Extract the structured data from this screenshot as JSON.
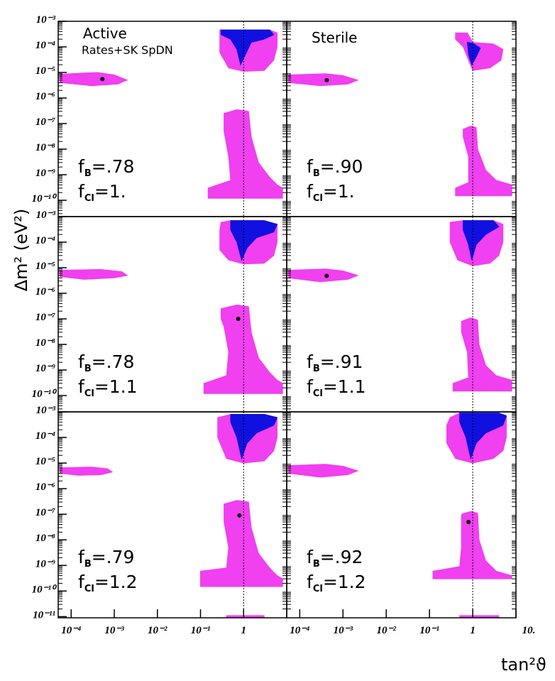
{
  "axis_labels": {
    "y": "Δm² (eV²)",
    "x": "tan²ϑ"
  },
  "chart_data": [
    {
      "type": "region",
      "title": "Active",
      "subtitle": "Rates+SK SpDN",
      "annotations": [
        {
          "f": "f",
          "sub": "B",
          "text": "=.78"
        },
        {
          "f": "f",
          "sub": "Cl",
          "text": "=1."
        }
      ],
      "xlim": [
        5e-05,
        10
      ],
      "ylim": [
        2.3e-11,
        0.001
      ],
      "log_x": true,
      "log_y": true,
      "ref_x": 1,
      "yticks": [
        {
          "value": 0.001,
          "label": "10⁻³"
        },
        {
          "value": 0.0001,
          "label": "10⁻⁴"
        },
        {
          "value": 1e-05,
          "label": "10⁻⁵"
        },
        {
          "value": 1e-06,
          "label": "10⁻⁶"
        },
        {
          "value": 1e-07,
          "label": "10⁻⁷"
        },
        {
          "value": 1e-08,
          "label": "10⁻⁸"
        },
        {
          "value": 1e-09,
          "label": "10⁻⁹"
        },
        {
          "value": 1e-10,
          "label": "10⁻¹⁰"
        }
      ],
      "regions": [
        {
          "color": "#f040f0",
          "x": [
            0.28,
            0.5,
            4,
            6,
            6,
            5,
            3,
            1,
            0.45,
            0.28
          ],
          "y": [
            0.00046,
            0.00046,
            0.00046,
            0.00035,
            0.0001,
            3e-05,
            1.2e-05,
            1.1e-05,
            1.5e-05,
            6e-05
          ]
        },
        {
          "color": "#f040f0",
          "x": [
            5.5e-05,
            0.0004,
            0.001,
            0.002,
            0.0012,
            0.0003,
            5.5e-05
          ],
          "y": [
            8.5e-06,
            1e-05,
            8e-06,
            5e-06,
            3.5e-06,
            3e-06,
            4e-06
          ]
        },
        {
          "color": "#f040f0",
          "x": [
            0.35,
            0.7,
            1.3,
            1.5,
            2.2,
            4,
            6,
            8,
            8,
            0.15,
            0.15,
            0.5,
            0.45,
            0.35
          ],
          "y": [
            2.5e-07,
            3.5e-07,
            3e-07,
            3e-08,
            3e-09,
            8e-10,
            4e-10,
            3e-10,
            1.2e-10,
            1.2e-10,
            3e-10,
            6e-10,
            5e-09,
            5e-08
          ]
        },
        {
          "color": "#1010e0",
          "x": [
            0.3,
            4,
            5,
            3,
            1.5,
            1.1,
            0.85,
            0.7,
            0.5,
            0.3
          ],
          "y": [
            0.00046,
            0.00046,
            0.0003,
            0.0002,
            0.00015,
            5e-05,
            2e-05,
            8e-05,
            0.0002,
            0.0003
          ]
        }
      ],
      "best_fit": {
        "x": 0.00053,
        "y": 5.5e-06
      }
    },
    {
      "type": "region",
      "title": "Sterile",
      "annotations": [
        {
          "f": "f",
          "sub": "B",
          "text": "=.90"
        },
        {
          "f": "f",
          "sub": "Cl",
          "text": "=1."
        }
      ],
      "xlim": [
        5e-05,
        10
      ],
      "ylim": [
        2.3e-11,
        0.001
      ],
      "log_x": true,
      "log_y": true,
      "ref_x": 1,
      "regions": [
        {
          "color": "#f040f0",
          "x": [
            0.4,
            0.75,
            1,
            3,
            5,
            4.5,
            2.5,
            1,
            0.8,
            0.6,
            0.4
          ],
          "y": [
            0.00035,
            0.00035,
            0.00015,
            0.00013,
            8e-05,
            3e-05,
            1.5e-05,
            1.2e-05,
            3e-05,
            0.0001,
            0.0002
          ]
        },
        {
          "color": "#f040f0",
          "x": [
            5.5e-05,
            0.0004,
            0.001,
            0.0022,
            0.0013,
            0.0003,
            5.5e-05
          ],
          "y": [
            8e-06,
            9e-06,
            7.5e-06,
            5e-06,
            3.5e-06,
            3e-06,
            4e-06
          ]
        },
        {
          "color": "#f040f0",
          "x": [
            0.6,
            0.9,
            1.2,
            1.3,
            2,
            3.5,
            8,
            8,
            0.4,
            0.4,
            0.8,
            0.8,
            0.6
          ],
          "y": [
            6e-08,
            8e-08,
            7e-08,
            1e-08,
            1.5e-09,
            6e-10,
            4e-10,
            1.5e-10,
            1.5e-10,
            3e-10,
            5e-10,
            5e-09,
            3e-08
          ]
        },
        {
          "color": "#1010e0",
          "x": [
            0.75,
            1,
            1.5,
            1.2,
            0.95,
            0.8
          ],
          "y": [
            0.00015,
            0.00014,
            9e-05,
            4e-05,
            2e-05,
            5e-05
          ]
        }
      ],
      "best_fit": {
        "x": 0.00042,
        "y": 5e-06
      }
    },
    {
      "type": "region",
      "annotations": [
        {
          "f": "f",
          "sub": "B",
          "text": "=.78"
        },
        {
          "f": "f",
          "sub": "Cl",
          "text": "=1.1"
        }
      ],
      "xlim": [
        5e-05,
        10
      ],
      "ylim": [
        2.3e-11,
        0.001
      ],
      "log_x": true,
      "log_y": true,
      "ref_x": 1,
      "yticks": [
        {
          "value": 0.001,
          "label": "10⁻³"
        },
        {
          "value": 0.0001,
          "label": "10⁻⁴"
        },
        {
          "value": 1e-05,
          "label": "10⁻⁵"
        },
        {
          "value": 1e-06,
          "label": "10⁻⁶"
        },
        {
          "value": 1e-07,
          "label": "10⁻⁷"
        },
        {
          "value": 1e-08,
          "label": "10⁻⁸"
        },
        {
          "value": 1e-09,
          "label": "10⁻⁹"
        },
        {
          "value": 1e-10,
          "label": "10⁻¹⁰"
        }
      ],
      "regions": [
        {
          "color": "#f040f0",
          "x": [
            0.3,
            0.5,
            3,
            6,
            6,
            5,
            3,
            1,
            0.45,
            0.28,
            0.28
          ],
          "y": [
            0.0006,
            0.0007,
            0.0007,
            0.0005,
            0.0001,
            3e-05,
            1.5e-05,
            1.4e-05,
            2e-05,
            5e-05,
            0.0003
          ]
        },
        {
          "color": "#f040f0",
          "x": [
            5.5e-05,
            0.0005,
            0.0015,
            0.002,
            0.001,
            0.0002,
            5.5e-05
          ],
          "y": [
            8e-06,
            8.5e-06,
            7e-06,
            5e-06,
            4e-06,
            3.5e-06,
            4.5e-06
          ]
        },
        {
          "color": "#f040f0",
          "x": [
            0.3,
            0.7,
            1.3,
            1.5,
            2.2,
            4,
            6,
            8,
            8,
            0.12,
            0.12,
            0.4,
            0.45,
            0.35,
            0.3
          ],
          "y": [
            2.5e-07,
            3.5e-07,
            3e-07,
            3e-08,
            3e-09,
            8e-10,
            4e-10,
            3e-10,
            1.2e-10,
            1.2e-10,
            3e-10,
            6e-10,
            5e-09,
            5e-08,
            1e-07
          ]
        },
        {
          "color": "#1010e0",
          "x": [
            0.5,
            3,
            6,
            5,
            2,
            1.2,
            0.9,
            0.7,
            0.5
          ],
          "y": [
            0.0007,
            0.0007,
            0.0005,
            0.00025,
            0.00015,
            6e-05,
            2e-05,
            0.0001,
            0.0003
          ]
        }
      ],
      "best_fit": {
        "x": 0.75,
        "y": 1e-07
      }
    },
    {
      "type": "region",
      "annotations": [
        {
          "f": "f",
          "sub": "B",
          "text": "=.91"
        },
        {
          "f": "f",
          "sub": "Cl",
          "text": "=1.1"
        }
      ],
      "xlim": [
        5e-05,
        10
      ],
      "ylim": [
        2.3e-11,
        0.001
      ],
      "log_x": true,
      "log_y": true,
      "ref_x": 1,
      "regions": [
        {
          "color": "#f040f0",
          "x": [
            0.3,
            0.6,
            3,
            5,
            5,
            4,
            2.5,
            1,
            0.45,
            0.3
          ],
          "y": [
            0.0006,
            0.0007,
            0.0007,
            0.0005,
            0.0001,
            3e-05,
            1.5e-05,
            1.2e-05,
            2e-05,
            0.0001
          ]
        },
        {
          "color": "#f040f0",
          "x": [
            5.5e-05,
            0.0004,
            0.001,
            0.0022,
            0.0013,
            0.0003,
            5.5e-05
          ],
          "y": [
            8e-06,
            9e-06,
            7.5e-06,
            5e-06,
            3.5e-06,
            2.8e-06,
            4e-06
          ]
        },
        {
          "color": "#f040f0",
          "x": [
            0.55,
            0.9,
            1.3,
            1.4,
            2,
            3.5,
            8,
            8,
            0.35,
            0.35,
            0.8,
            0.75,
            0.55
          ],
          "y": [
            8e-08,
            1.1e-07,
            9e-08,
            1e-08,
            1.5e-09,
            6e-10,
            4e-10,
            1.5e-10,
            1.5e-10,
            3e-10,
            5e-10,
            5e-09,
            3e-08
          ]
        },
        {
          "color": "#1010e0",
          "x": [
            0.6,
            3,
            4,
            2,
            1.2,
            0.95,
            0.8,
            0.6
          ],
          "y": [
            0.0007,
            0.0007,
            0.0004,
            0.0002,
            8e-05,
            2e-05,
            8e-05,
            0.0003
          ]
        }
      ],
      "best_fit": {
        "x": 0.00042,
        "y": 4.8e-06
      }
    },
    {
      "type": "region",
      "annotations": [
        {
          "f": "f",
          "sub": "B",
          "text": "=.79"
        },
        {
          "f": "f",
          "sub": "Cl",
          "text": "=1.2"
        }
      ],
      "xlim": [
        5e-05,
        10
      ],
      "ylim": [
        9e-12,
        0.001
      ],
      "log_x": true,
      "log_y": true,
      "ref_x": 1,
      "yticks": [
        {
          "value": 0.001,
          "label": "10⁻³"
        },
        {
          "value": 0.0001,
          "label": "10⁻⁴"
        },
        {
          "value": 1e-05,
          "label": "10⁻⁵"
        },
        {
          "value": 1e-06,
          "label": "10⁻⁶"
        },
        {
          "value": 1e-07,
          "label": "10⁻⁷"
        },
        {
          "value": 1e-08,
          "label": "10⁻⁸"
        },
        {
          "value": 1e-09,
          "label": "10⁻⁹"
        },
        {
          "value": 1e-10,
          "label": "10⁻¹⁰"
        },
        {
          "value": 1e-11,
          "label": "10⁻¹¹"
        }
      ],
      "xticks": [
        {
          "value": 0.0001,
          "label": "10⁻⁴"
        },
        {
          "value": 0.001,
          "label": "10⁻³"
        },
        {
          "value": 0.01,
          "label": "10⁻²"
        },
        {
          "value": 0.1,
          "label": "10⁻¹"
        },
        1
      ],
      "regions": [
        {
          "color": "#f040f0",
          "x": [
            0.25,
            0.5,
            3,
            6,
            6,
            5,
            3,
            1,
            0.4,
            0.25
          ],
          "y": [
            0.0006,
            0.0008,
            0.0008,
            0.0006,
            0.0001,
            3e-05,
            1.2e-05,
            1e-05,
            1.5e-05,
            0.0001
          ]
        },
        {
          "color": "#f040f0",
          "x": [
            5.5e-05,
            0.0003,
            0.0007,
            0.0009,
            0.0005,
            0.00015,
            5.5e-05
          ],
          "y": [
            6.5e-06,
            7e-06,
            6e-06,
            4.5e-06,
            3.5e-06,
            3.3e-06,
            4e-06
          ]
        },
        {
          "color": "#f040f0",
          "x": [
            0.35,
            0.7,
            1.3,
            1.5,
            2.2,
            4,
            6,
            8,
            8,
            0.1,
            0.1,
            0.4,
            0.45,
            0.35
          ],
          "y": [
            2.5e-07,
            3.5e-07,
            3e-07,
            3e-08,
            3e-09,
            8e-10,
            4e-10,
            3e-10,
            1.5e-10,
            1.5e-10,
            6e-10,
            8e-10,
            5e-09,
            5e-08
          ]
        },
        {
          "color": "#f040f0",
          "x": [
            0.4,
            3,
            3,
            0.4
          ],
          "y": [
            1.1e-11,
            1.1e-11,
            9e-12,
            9e-12
          ]
        },
        {
          "color": "#1010e0",
          "x": [
            0.5,
            3,
            6,
            5,
            2,
            1.2,
            0.9,
            0.7,
            0.5
          ],
          "y": [
            0.0008,
            0.0008,
            0.0006,
            0.0003,
            0.00015,
            6e-05,
            1.5e-05,
            0.0001,
            0.0004
          ]
        }
      ],
      "best_fit": {
        "x": 0.8,
        "y": 9e-08
      }
    },
    {
      "type": "region",
      "annotations": [
        {
          "f": "f",
          "sub": "B",
          "text": "=.92"
        },
        {
          "f": "f",
          "sub": "Cl",
          "text": "=1.2"
        }
      ],
      "xlim": [
        5e-05,
        10
      ],
      "ylim": [
        9e-12,
        0.001
      ],
      "log_x": true,
      "log_y": true,
      "ref_x": 1,
      "xticks": [
        {
          "value": 0.0001,
          "label": "10⁻⁴"
        },
        {
          "value": 0.001,
          "label": "10⁻³"
        },
        {
          "value": 0.01,
          "label": "10⁻²"
        },
        {
          "value": 0.1,
          "label": "10⁻¹"
        },
        1,
        {
          "value": 10,
          "label": "10."
        }
      ],
      "regions": [
        {
          "color": "#f040f0",
          "x": [
            0.3,
            0.5,
            4,
            6,
            6,
            5,
            3,
            1,
            0.4,
            0.25,
            0.25
          ],
          "y": [
            0.0006,
            0.0009,
            0.0009,
            0.0007,
            0.0001,
            3e-05,
            1.5e-05,
            1e-05,
            1.5e-05,
            6e-05,
            0.0003
          ]
        },
        {
          "color": "#f040f0",
          "x": [
            5.5e-05,
            0.0004,
            0.001,
            0.0022,
            0.0013,
            0.0003,
            5.5e-05
          ],
          "y": [
            8e-06,
            9e-06,
            7.5e-06,
            5e-06,
            3.5e-06,
            2.8e-06,
            4e-06
          ]
        },
        {
          "color": "#f040f0",
          "x": [
            0.55,
            0.9,
            1.3,
            1.4,
            2,
            3.5,
            8,
            8,
            0.12,
            0.12,
            0.5,
            0.55,
            0.55
          ],
          "y": [
            1e-07,
            1.3e-07,
            1.1e-07,
            1e-08,
            1.5e-09,
            6e-10,
            4e-10,
            3e-10,
            3e-10,
            6e-10,
            9e-10,
            5e-09,
            3e-08
          ]
        },
        {
          "color": "#f040f0",
          "x": [
            0.5,
            4,
            4,
            0.5
          ],
          "y": [
            1.1e-11,
            1.1e-11,
            9e-12,
            9e-12
          ]
        },
        {
          "color": "#1010e0",
          "x": [
            0.5,
            4,
            6,
            5,
            2,
            1.2,
            0.9,
            0.7,
            0.5
          ],
          "y": [
            0.0009,
            0.0009,
            0.0007,
            0.0003,
            0.00015,
            6e-05,
            1.5e-05,
            0.0001,
            0.0004
          ]
        }
      ],
      "best_fit": {
        "x": 0.8,
        "y": 5e-08
      }
    }
  ]
}
